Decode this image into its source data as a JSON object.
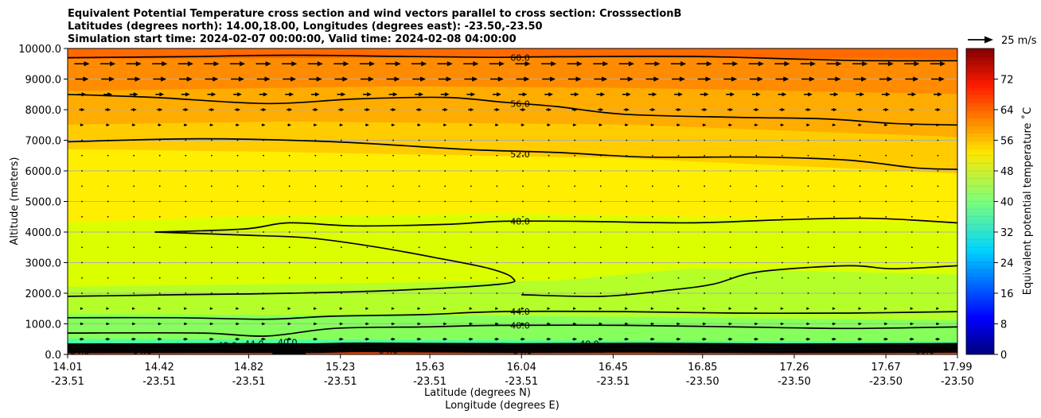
{
  "chart_data": {
    "type": "contour",
    "title_lines": [
      "Equivalent Potential Temperature cross section and wind vectors parallel to cross section: CrosssectionB",
      "Latitudes (degrees north): 14.00,18.00, Longitudes (degrees east): -23.50,-23.50",
      "Simulation start time: 2024-02-07 00:00:00, Valid time: 2024-02-08 04:00:00"
    ],
    "xlabel_lat": "Latitude (degrees N)",
    "xlabel_lon": "Longitude (degrees E)",
    "ylabel": "Altitude (meters)",
    "x_range": [
      14.01,
      17.99
    ],
    "ylim": [
      0,
      10000
    ],
    "x_ticks": [
      {
        "value": 14.01,
        "lat": "14.01",
        "lon": "-23.51"
      },
      {
        "value": 14.42,
        "lat": "14.42",
        "lon": "-23.51"
      },
      {
        "value": 14.82,
        "lat": "14.82",
        "lon": "-23.51"
      },
      {
        "value": 15.23,
        "lat": "15.23",
        "lon": "-23.51"
      },
      {
        "value": 15.63,
        "lat": "15.63",
        "lon": "-23.51"
      },
      {
        "value": 16.04,
        "lat": "16.04",
        "lon": "-23.51"
      },
      {
        "value": 16.45,
        "lat": "16.45",
        "lon": "-23.51"
      },
      {
        "value": 16.85,
        "lat": "16.85",
        "lon": "-23.50"
      },
      {
        "value": 17.26,
        "lat": "17.26",
        "lon": "-23.50"
      },
      {
        "value": 17.67,
        "lat": "17.67",
        "lon": "-23.50"
      },
      {
        "value": 17.99,
        "lat": "17.99",
        "lon": "-23.50"
      }
    ],
    "y_ticks": [
      {
        "value": 0,
        "label": "0.0"
      },
      {
        "value": 1000,
        "label": "1000.0"
      },
      {
        "value": 2000,
        "label": "2000.0"
      },
      {
        "value": 3000,
        "label": "3000.0"
      },
      {
        "value": 4000,
        "label": "4000.0"
      },
      {
        "value": 5000,
        "label": "5000.0"
      },
      {
        "value": 6000,
        "label": "6000.0"
      },
      {
        "value": 7000,
        "label": "7000.0"
      },
      {
        "value": 8000,
        "label": "8000.0"
      },
      {
        "value": 9000,
        "label": "9000.0"
      },
      {
        "value": 10000,
        "label": "10000.0"
      }
    ],
    "colorbar": {
      "label": "Equivalent potential temperature ˚C",
      "range": [
        0,
        80
      ],
      "ticks": [
        {
          "value": 0,
          "label": "0"
        },
        {
          "value": 8,
          "label": "8"
        },
        {
          "value": 16,
          "label": "16"
        },
        {
          "value": 24,
          "label": "24"
        },
        {
          "value": 32,
          "label": "32"
        },
        {
          "value": 40,
          "label": "40"
        },
        {
          "value": 48,
          "label": "48"
        },
        {
          "value": 56,
          "label": "56"
        },
        {
          "value": 64,
          "label": "64"
        },
        {
          "value": 72,
          "label": "72"
        }
      ]
    },
    "quiver_key": {
      "label": "25 m/s",
      "value": 25
    },
    "filled_bands": [
      {
        "theta": 62,
        "color": "#ff6a00",
        "alt": [
          [
            14.01,
            10000
          ],
          [
            17.99,
            10000
          ],
          [
            17.99,
            9650
          ],
          [
            16.0,
            9700
          ],
          [
            14.01,
            9650
          ]
        ]
      },
      {
        "theta": 59,
        "color": "#ff8c00",
        "alt": [
          [
            14.01,
            9650
          ],
          [
            16.0,
            9700
          ],
          [
            17.99,
            9650
          ],
          [
            17.99,
            8500
          ],
          [
            16.5,
            8700
          ],
          [
            15.5,
            8750
          ],
          [
            14.01,
            8600
          ]
        ]
      },
      {
        "theta": 55,
        "color": "#ffac00",
        "alt": [
          [
            14.01,
            8600
          ],
          [
            15.5,
            8750
          ],
          [
            16.5,
            8700
          ],
          [
            17.99,
            8500
          ],
          [
            17.99,
            7100
          ],
          [
            16.5,
            7500
          ],
          [
            15.0,
            7600
          ],
          [
            14.01,
            7500
          ]
        ]
      },
      {
        "theta": 53,
        "color": "#ffcc00",
        "alt": [
          [
            14.01,
            7500
          ],
          [
            15.0,
            7600
          ],
          [
            16.5,
            7500
          ],
          [
            17.99,
            7100
          ],
          [
            17.99,
            5900
          ],
          [
            16.5,
            6400
          ],
          [
            15.0,
            6600
          ],
          [
            14.01,
            6700
          ]
        ]
      },
      {
        "theta": 50,
        "color": "#ffee00",
        "alt": [
          [
            14.01,
            6700
          ],
          [
            15.0,
            6600
          ],
          [
            16.5,
            6400
          ],
          [
            17.99,
            5900
          ],
          [
            17.99,
            4300
          ],
          [
            16.0,
            4600
          ],
          [
            14.8,
            4500
          ],
          [
            14.01,
            4300
          ]
        ]
      },
      {
        "theta": 47,
        "color": "#dcff00",
        "alt": [
          [
            14.01,
            4300
          ],
          [
            14.8,
            4500
          ],
          [
            16.0,
            4600
          ],
          [
            17.99,
            4300
          ],
          [
            17.99,
            2600
          ],
          [
            16.8,
            2800
          ],
          [
            16.2,
            2400
          ],
          [
            14.01,
            2200
          ]
        ]
      },
      {
        "theta": 44,
        "color": "#b4ff2a",
        "alt": [
          [
            14.01,
            2200
          ],
          [
            16.2,
            2400
          ],
          [
            16.8,
            2800
          ],
          [
            17.99,
            2600
          ],
          [
            17.99,
            1100
          ],
          [
            16.0,
            1250
          ],
          [
            14.01,
            1300
          ]
        ]
      },
      {
        "theta": 41,
        "color": "#86ff5c",
        "alt": [
          [
            14.01,
            1300
          ],
          [
            16.0,
            1250
          ],
          [
            17.99,
            1100
          ],
          [
            17.99,
            400
          ],
          [
            14.01,
            500
          ]
        ]
      },
      {
        "theta": 38,
        "color": "#4cffa0",
        "alt": [
          [
            14.01,
            500
          ],
          [
            17.99,
            400
          ],
          [
            17.99,
            120
          ],
          [
            14.01,
            150
          ]
        ]
      },
      {
        "theta": 63,
        "color": "#ff4600",
        "alt": [
          [
            14.01,
            150
          ],
          [
            17.99,
            120
          ],
          [
            17.99,
            0
          ],
          [
            14.01,
            0
          ]
        ]
      }
    ],
    "contours": [
      {
        "level": 60,
        "label": "60.0",
        "label_at": [
          16.04,
          9700
        ],
        "points": [
          [
            14.01,
            9700
          ],
          [
            14.5,
            9730
          ],
          [
            15.0,
            9780
          ],
          [
            15.5,
            9740
          ],
          [
            15.9,
            9710
          ],
          [
            16.2,
            9730
          ],
          [
            16.8,
            9740
          ],
          [
            17.3,
            9650
          ],
          [
            17.6,
            9600
          ],
          [
            17.99,
            9600
          ]
        ]
      },
      {
        "level": 56,
        "label": "56.0",
        "label_at": [
          16.04,
          8200
        ],
        "points": [
          [
            14.01,
            8500
          ],
          [
            14.4,
            8400
          ],
          [
            14.9,
            8200
          ],
          [
            15.3,
            8350
          ],
          [
            15.7,
            8400
          ],
          [
            15.95,
            8250
          ],
          [
            16.2,
            8100
          ],
          [
            16.5,
            7850
          ],
          [
            17.0,
            7750
          ],
          [
            17.4,
            7700
          ],
          [
            17.7,
            7550
          ],
          [
            17.99,
            7500
          ]
        ]
      },
      {
        "level": 52,
        "label": "52.0",
        "label_at": [
          16.04,
          6550
        ],
        "points": [
          [
            14.01,
            6950
          ],
          [
            14.6,
            7050
          ],
          [
            15.2,
            6950
          ],
          [
            15.8,
            6700
          ],
          [
            16.2,
            6600
          ],
          [
            16.6,
            6450
          ],
          [
            17.1,
            6450
          ],
          [
            17.5,
            6350
          ],
          [
            17.8,
            6100
          ],
          [
            17.99,
            6050
          ]
        ]
      },
      {
        "level": 48,
        "label": "48.0",
        "label_at": [
          16.04,
          4350
        ],
        "points": [
          [
            14.4,
            4000
          ],
          [
            14.8,
            4100
          ],
          [
            15.0,
            4300
          ],
          [
            15.3,
            4200
          ],
          [
            15.7,
            4250
          ],
          [
            15.95,
            4350
          ],
          [
            16.3,
            4350
          ],
          [
            16.8,
            4300
          ],
          [
            17.2,
            4400
          ],
          [
            17.6,
            4450
          ],
          [
            17.99,
            4300
          ]
        ]
      },
      {
        "level": 48,
        "label": "",
        "label_at": null,
        "points": [
          [
            14.4,
            4000
          ],
          [
            14.8,
            3900
          ],
          [
            15.1,
            3800
          ],
          [
            15.4,
            3500
          ],
          [
            15.7,
            3100
          ],
          [
            15.9,
            2800
          ],
          [
            16.0,
            2500
          ],
          [
            15.95,
            2300
          ],
          [
            15.5,
            2100
          ],
          [
            15.0,
            2000
          ],
          [
            14.5,
            1950
          ],
          [
            14.01,
            1900
          ]
        ]
      },
      {
        "level": 46,
        "label": "",
        "label_at": null,
        "points": [
          [
            16.04,
            1950
          ],
          [
            16.4,
            1900
          ],
          [
            16.7,
            2100
          ],
          [
            16.9,
            2300
          ],
          [
            17.1,
            2700
          ],
          [
            17.5,
            2900
          ],
          [
            17.7,
            2800
          ],
          [
            17.99,
            2900
          ]
        ]
      },
      {
        "level": 44,
        "label": "44.0",
        "label_at": [
          16.04,
          1400
        ],
        "points": [
          [
            14.01,
            1200
          ],
          [
            14.5,
            1200
          ],
          [
            14.9,
            1150
          ],
          [
            15.2,
            1250
          ],
          [
            15.6,
            1300
          ],
          [
            15.95,
            1400
          ],
          [
            16.5,
            1400
          ],
          [
            17.0,
            1350
          ],
          [
            17.5,
            1350
          ],
          [
            17.99,
            1400
          ]
        ]
      },
      {
        "level": 40,
        "label": "40.0",
        "label_at": [
          16.04,
          950
        ],
        "points": [
          [
            14.01,
            700
          ],
          [
            14.6,
            700
          ],
          [
            14.9,
            600
          ],
          [
            15.2,
            850
          ],
          [
            15.6,
            900
          ],
          [
            15.95,
            950
          ],
          [
            16.5,
            950
          ],
          [
            17.0,
            900
          ],
          [
            17.5,
            850
          ],
          [
            17.99,
            900
          ]
        ]
      }
    ],
    "low_level_labels": [
      {
        "text": "40.0",
        "at": [
          14.95,
          400
        ]
      },
      {
        "text": "44.0",
        "at": [
          14.8,
          350
        ]
      },
      {
        "text": "48.0",
        "at": [
          14.68,
          300
        ]
      },
      {
        "text": "52.0",
        "at": [
          14.6,
          250
        ]
      },
      {
        "text": "60.0",
        "at": [
          14.45,
          230
        ]
      },
      {
        "text": "64.0",
        "at": [
          14.3,
          120
        ]
      },
      {
        "text": "64.0",
        "at": [
          14.02,
          100
        ]
      },
      {
        "text": "64.0",
        "at": [
          15.4,
          130
        ]
      },
      {
        "text": "64.0",
        "at": [
          16.0,
          120
        ]
      },
      {
        "text": "40.0",
        "at": [
          16.3,
          350
        ]
      },
      {
        "text": "44.0",
        "at": [
          16.25,
          250
        ]
      },
      {
        "text": "48.0",
        "at": [
          16.2,
          200
        ]
      },
      {
        "text": "60.0",
        "at": [
          17.8,
          120
        ]
      }
    ],
    "wind_rows": [
      {
        "alt": 9500,
        "u": 16
      },
      {
        "alt": 9000,
        "u": 14
      },
      {
        "alt": 8500,
        "u": 9
      },
      {
        "alt": 8000,
        "u": 6
      },
      {
        "alt": 7500,
        "u": 4
      },
      {
        "alt": 7000,
        "u": 1
      },
      {
        "alt": 6500,
        "u": 1
      },
      {
        "alt": 6000,
        "u": 0
      },
      {
        "alt": 5500,
        "u": 0
      },
      {
        "alt": 5000,
        "u": 0
      },
      {
        "alt": 4500,
        "u": 0
      },
      {
        "alt": 4000,
        "u": 0
      },
      {
        "alt": 3500,
        "u": 0
      },
      {
        "alt": 3000,
        "u": 0
      },
      {
        "alt": 2500,
        "u": 0
      },
      {
        "alt": 2000,
        "u": 1
      },
      {
        "alt": 1500,
        "u": 3
      },
      {
        "alt": 1000,
        "u": 4
      },
      {
        "alt": 500,
        "u": 5
      }
    ],
    "grid": true
  }
}
